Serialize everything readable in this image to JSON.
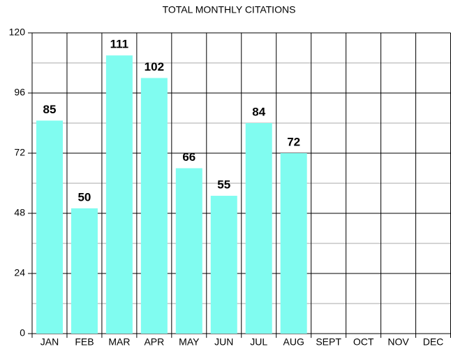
{
  "chart_data": {
    "type": "bar",
    "title": "TOTAL MONTHLY CITATIONS",
    "categories": [
      "JAN",
      "FEB",
      "MAR",
      "APR",
      "MAY",
      "JUN",
      "JUL",
      "AUG",
      "SEPT",
      "OCT",
      "NOV",
      "DEC"
    ],
    "values": [
      85,
      50,
      111,
      102,
      66,
      55,
      84,
      72,
      null,
      null,
      null,
      null
    ],
    "color": "#80fcf0",
    "ylim": [
      0,
      120
    ],
    "yticks": [
      0,
      24,
      48,
      72,
      96,
      120
    ],
    "minor_yticks": [
      12,
      36,
      60,
      84,
      108
    ],
    "grid": true
  }
}
